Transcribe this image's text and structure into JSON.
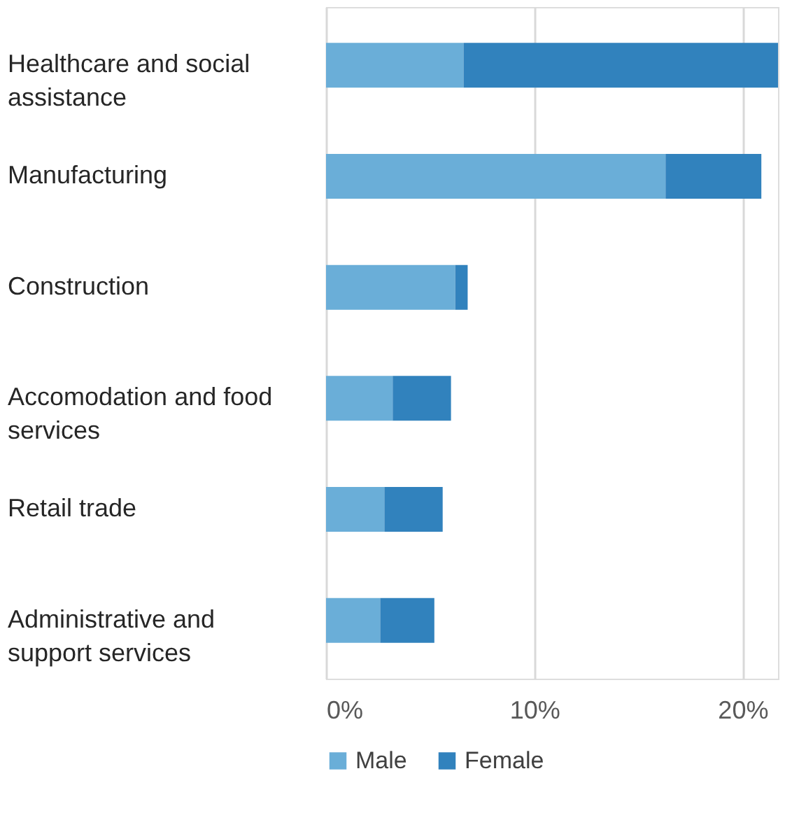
{
  "chart_data": {
    "type": "bar",
    "orientation": "horizontal",
    "stacked": true,
    "categories": [
      "Healthcare and social assistance",
      "Manufacturing",
      "Construction",
      "Accomodation and food services",
      "Retail trade",
      "Administrative and support services"
    ],
    "series": [
      {
        "name": "Male",
        "color": "#6aaed8",
        "values": [
          6.6,
          16.3,
          6.2,
          3.2,
          2.8,
          2.6
        ]
      },
      {
        "name": "Female",
        "color": "#3182bd",
        "values": [
          15.1,
          4.6,
          0.6,
          2.8,
          2.8,
          2.6
        ]
      }
    ],
    "xlim": [
      0,
      21.7
    ],
    "xticks": [
      {
        "value": 0,
        "label": "0%"
      },
      {
        "value": 10,
        "label": "10%"
      },
      {
        "value": 20,
        "label": "20%"
      }
    ],
    "grid": "x",
    "legend": "bottom"
  }
}
